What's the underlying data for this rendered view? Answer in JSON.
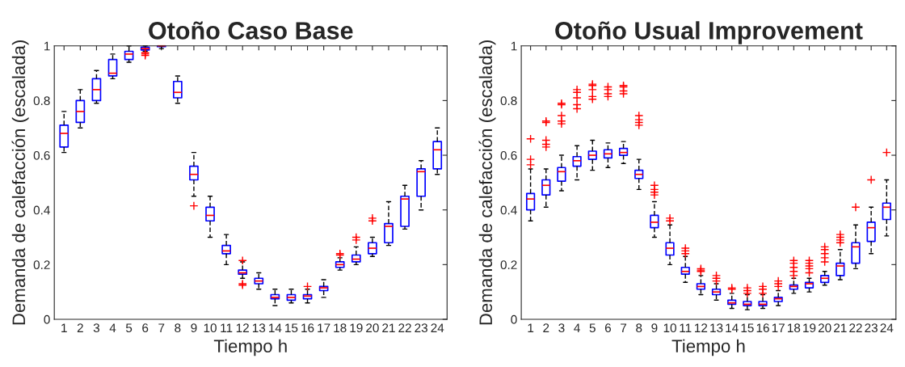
{
  "chart_data": [
    {
      "type": "box",
      "title": "Otoño Caso Base",
      "xlabel": "Tiempo h",
      "ylabel": "Demanda de calefacción (escalada)",
      "categories": [
        "1",
        "2",
        "3",
        "4",
        "5",
        "6",
        "7",
        "8",
        "9",
        "10",
        "11",
        "12",
        "13",
        "14",
        "15",
        "16",
        "17",
        "18",
        "19",
        "20",
        "21",
        "22",
        "23",
        "24"
      ],
      "ylim": [
        0,
        1
      ],
      "yticks": [
        0,
        0.2,
        0.4,
        0.6,
        0.8,
        1
      ],
      "grid": false,
      "series": [
        {
          "color": "#0000ff",
          "boxes": [
            {
              "low": 0.61,
              "q1": 0.63,
              "median": 0.68,
              "q3": 0.71,
              "high": 0.76
            },
            {
              "low": 0.7,
              "q1": 0.72,
              "median": 0.76,
              "q3": 0.8,
              "high": 0.84
            },
            {
              "low": 0.79,
              "q1": 0.8,
              "median": 0.84,
              "q3": 0.88,
              "high": 0.91
            },
            {
              "low": 0.88,
              "q1": 0.89,
              "median": 0.9,
              "q3": 0.95,
              "high": 0.97
            },
            {
              "low": 0.94,
              "q1": 0.95,
              "median": 0.97,
              "q3": 0.98,
              "high": 1.0
            },
            {
              "low": 0.98,
              "q1": 0.985,
              "median": 0.99,
              "q3": 0.995,
              "high": 1.0,
              "outliers": [
                0.965,
                0.97,
                0.975
              ]
            },
            {
              "low": 0.99,
              "q1": 0.997,
              "median": 1.0,
              "q3": 1.0,
              "high": 1.0
            },
            {
              "low": 0.79,
              "q1": 0.81,
              "median": 0.83,
              "q3": 0.87,
              "high": 0.89
            },
            {
              "low": 0.45,
              "q1": 0.51,
              "median": 0.53,
              "q3": 0.56,
              "high": 0.61,
              "outliers": [
                0.415
              ]
            },
            {
              "low": 0.3,
              "q1": 0.36,
              "median": 0.38,
              "q3": 0.41,
              "high": 0.45
            },
            {
              "low": 0.2,
              "q1": 0.24,
              "median": 0.25,
              "q3": 0.27,
              "high": 0.31
            },
            {
              "low": 0.15,
              "q1": 0.165,
              "median": 0.17,
              "q3": 0.18,
              "high": 0.21,
              "outliers": [
                0.215,
                0.13,
                0.125
              ]
            },
            {
              "low": 0.11,
              "q1": 0.13,
              "median": 0.14,
              "q3": 0.15,
              "high": 0.17
            },
            {
              "low": 0.05,
              "q1": 0.075,
              "median": 0.08,
              "q3": 0.09,
              "high": 0.11
            },
            {
              "low": 0.06,
              "q1": 0.07,
              "median": 0.08,
              "q3": 0.09,
              "high": 0.11
            },
            {
              "low": 0.06,
              "q1": 0.075,
              "median": 0.085,
              "q3": 0.09,
              "high": 0.11,
              "outliers": [
                0.12
              ]
            },
            {
              "low": 0.08,
              "q1": 0.105,
              "median": 0.115,
              "q3": 0.12,
              "high": 0.145
            },
            {
              "low": 0.18,
              "q1": 0.19,
              "median": 0.2,
              "q3": 0.21,
              "high": 0.225,
              "outliers": [
                0.235,
                0.24
              ]
            },
            {
              "low": 0.2,
              "q1": 0.21,
              "median": 0.22,
              "q3": 0.235,
              "high": 0.265,
              "outliers": [
                0.29,
                0.3
              ]
            },
            {
              "low": 0.23,
              "q1": 0.24,
              "median": 0.26,
              "q3": 0.28,
              "high": 0.3,
              "outliers": [
                0.36,
                0.37
              ]
            },
            {
              "low": 0.27,
              "q1": 0.28,
              "median": 0.34,
              "q3": 0.35,
              "high": 0.43
            },
            {
              "low": 0.33,
              "q1": 0.34,
              "median": 0.44,
              "q3": 0.45,
              "high": 0.49
            },
            {
              "low": 0.4,
              "q1": 0.45,
              "median": 0.54,
              "q3": 0.55,
              "high": 0.58
            },
            {
              "low": 0.53,
              "q1": 0.55,
              "median": 0.62,
              "q3": 0.65,
              "high": 0.7
            }
          ]
        }
      ]
    },
    {
      "type": "box",
      "title": "Otoño Usual Improvement",
      "xlabel": "Tiempo h",
      "ylabel": "Demanda de calefacción (escalada)",
      "categories": [
        "1",
        "2",
        "3",
        "4",
        "5",
        "6",
        "7",
        "8",
        "9",
        "10",
        "11",
        "12",
        "13",
        "14",
        "15",
        "16",
        "17",
        "18",
        "19",
        "20",
        "21",
        "22",
        "23",
        "24"
      ],
      "ylim": [
        0,
        1
      ],
      "yticks": [
        0,
        0.2,
        0.4,
        0.6,
        0.8,
        1
      ],
      "grid": false,
      "series": [
        {
          "color": "#0000ff",
          "boxes": [
            {
              "low": 0.36,
              "q1": 0.4,
              "median": 0.44,
              "q3": 0.46,
              "high": 0.55,
              "outliers": [
                0.565,
                0.585,
                0.66
              ]
            },
            {
              "low": 0.41,
              "q1": 0.455,
              "median": 0.49,
              "q3": 0.51,
              "high": 0.55,
              "outliers": [
                0.63,
                0.64,
                0.655,
                0.72,
                0.725
              ]
            },
            {
              "low": 0.47,
              "q1": 0.505,
              "median": 0.54,
              "q3": 0.555,
              "high": 0.6,
              "outliers": [
                0.715,
                0.725,
                0.745,
                0.785,
                0.79
              ]
            },
            {
              "low": 0.51,
              "q1": 0.56,
              "median": 0.58,
              "q3": 0.595,
              "high": 0.635,
              "outliers": [
                0.77,
                0.785,
                0.81,
                0.83,
                0.84
              ]
            },
            {
              "low": 0.545,
              "q1": 0.585,
              "median": 0.6,
              "q3": 0.615,
              "high": 0.655,
              "outliers": [
                0.805,
                0.815,
                0.84,
                0.855,
                0.86
              ]
            },
            {
              "low": 0.555,
              "q1": 0.59,
              "median": 0.605,
              "q3": 0.62,
              "high": 0.645,
              "outliers": [
                0.815,
                0.825,
                0.84,
                0.85
              ]
            },
            {
              "low": 0.57,
              "q1": 0.6,
              "median": 0.61,
              "q3": 0.625,
              "high": 0.65,
              "outliers": [
                0.825,
                0.835,
                0.85,
                0.855
              ]
            },
            {
              "low": 0.475,
              "q1": 0.515,
              "median": 0.53,
              "q3": 0.545,
              "high": 0.585,
              "outliers": [
                0.71,
                0.72,
                0.73,
                0.745
              ]
            },
            {
              "low": 0.3,
              "q1": 0.335,
              "median": 0.355,
              "q3": 0.38,
              "high": 0.43,
              "outliers": [
                0.455,
                0.465,
                0.475,
                0.49
              ]
            },
            {
              "low": 0.2,
              "q1": 0.235,
              "median": 0.26,
              "q3": 0.28,
              "high": 0.345,
              "outliers": [
                0.36,
                0.37
              ]
            },
            {
              "low": 0.135,
              "q1": 0.165,
              "median": 0.175,
              "q3": 0.19,
              "high": 0.23,
              "outliers": [
                0.24,
                0.25,
                0.26
              ]
            },
            {
              "low": 0.09,
              "q1": 0.11,
              "median": 0.12,
              "q3": 0.13,
              "high": 0.16,
              "outliers": [
                0.175,
                0.18,
                0.185
              ]
            },
            {
              "low": 0.07,
              "q1": 0.09,
              "median": 0.1,
              "q3": 0.11,
              "high": 0.13,
              "outliers": [
                0.14,
                0.15,
                0.16
              ]
            },
            {
              "low": 0.04,
              "q1": 0.055,
              "median": 0.06,
              "q3": 0.07,
              "high": 0.095,
              "outliers": [
                0.11,
                0.115
              ]
            },
            {
              "low": 0.035,
              "q1": 0.05,
              "median": 0.055,
              "q3": 0.065,
              "high": 0.09,
              "outliers": [
                0.095,
                0.105,
                0.115
              ]
            },
            {
              "low": 0.04,
              "q1": 0.05,
              "median": 0.055,
              "q3": 0.065,
              "high": 0.09,
              "outliers": [
                0.095,
                0.11,
                0.12
              ]
            },
            {
              "low": 0.05,
              "q1": 0.065,
              "median": 0.075,
              "q3": 0.08,
              "high": 0.105,
              "outliers": [
                0.12,
                0.13,
                0.14
              ]
            },
            {
              "low": 0.095,
              "q1": 0.11,
              "median": 0.12,
              "q3": 0.125,
              "high": 0.15,
              "outliers": [
                0.16,
                0.175,
                0.19,
                0.205,
                0.215
              ]
            },
            {
              "low": 0.1,
              "q1": 0.115,
              "median": 0.13,
              "q3": 0.135,
              "high": 0.15,
              "outliers": [
                0.17,
                0.185,
                0.195,
                0.205,
                0.215
              ]
            },
            {
              "low": 0.125,
              "q1": 0.135,
              "median": 0.15,
              "q3": 0.16,
              "high": 0.175,
              "outliers": [
                0.21,
                0.225,
                0.24,
                0.255,
                0.265
              ]
            },
            {
              "low": 0.145,
              "q1": 0.16,
              "median": 0.195,
              "q3": 0.205,
              "high": 0.255,
              "outliers": [
                0.28,
                0.29,
                0.3,
                0.31
              ]
            },
            {
              "low": 0.185,
              "q1": 0.205,
              "median": 0.265,
              "q3": 0.28,
              "high": 0.345,
              "outliers": [
                0.41
              ]
            },
            {
              "low": 0.24,
              "q1": 0.285,
              "median": 0.335,
              "q3": 0.355,
              "high": 0.41,
              "outliers": [
                0.51
              ]
            },
            {
              "low": 0.305,
              "q1": 0.365,
              "median": 0.41,
              "q3": 0.425,
              "high": 0.51,
              "outliers": [
                0.61
              ]
            }
          ]
        }
      ]
    }
  ]
}
